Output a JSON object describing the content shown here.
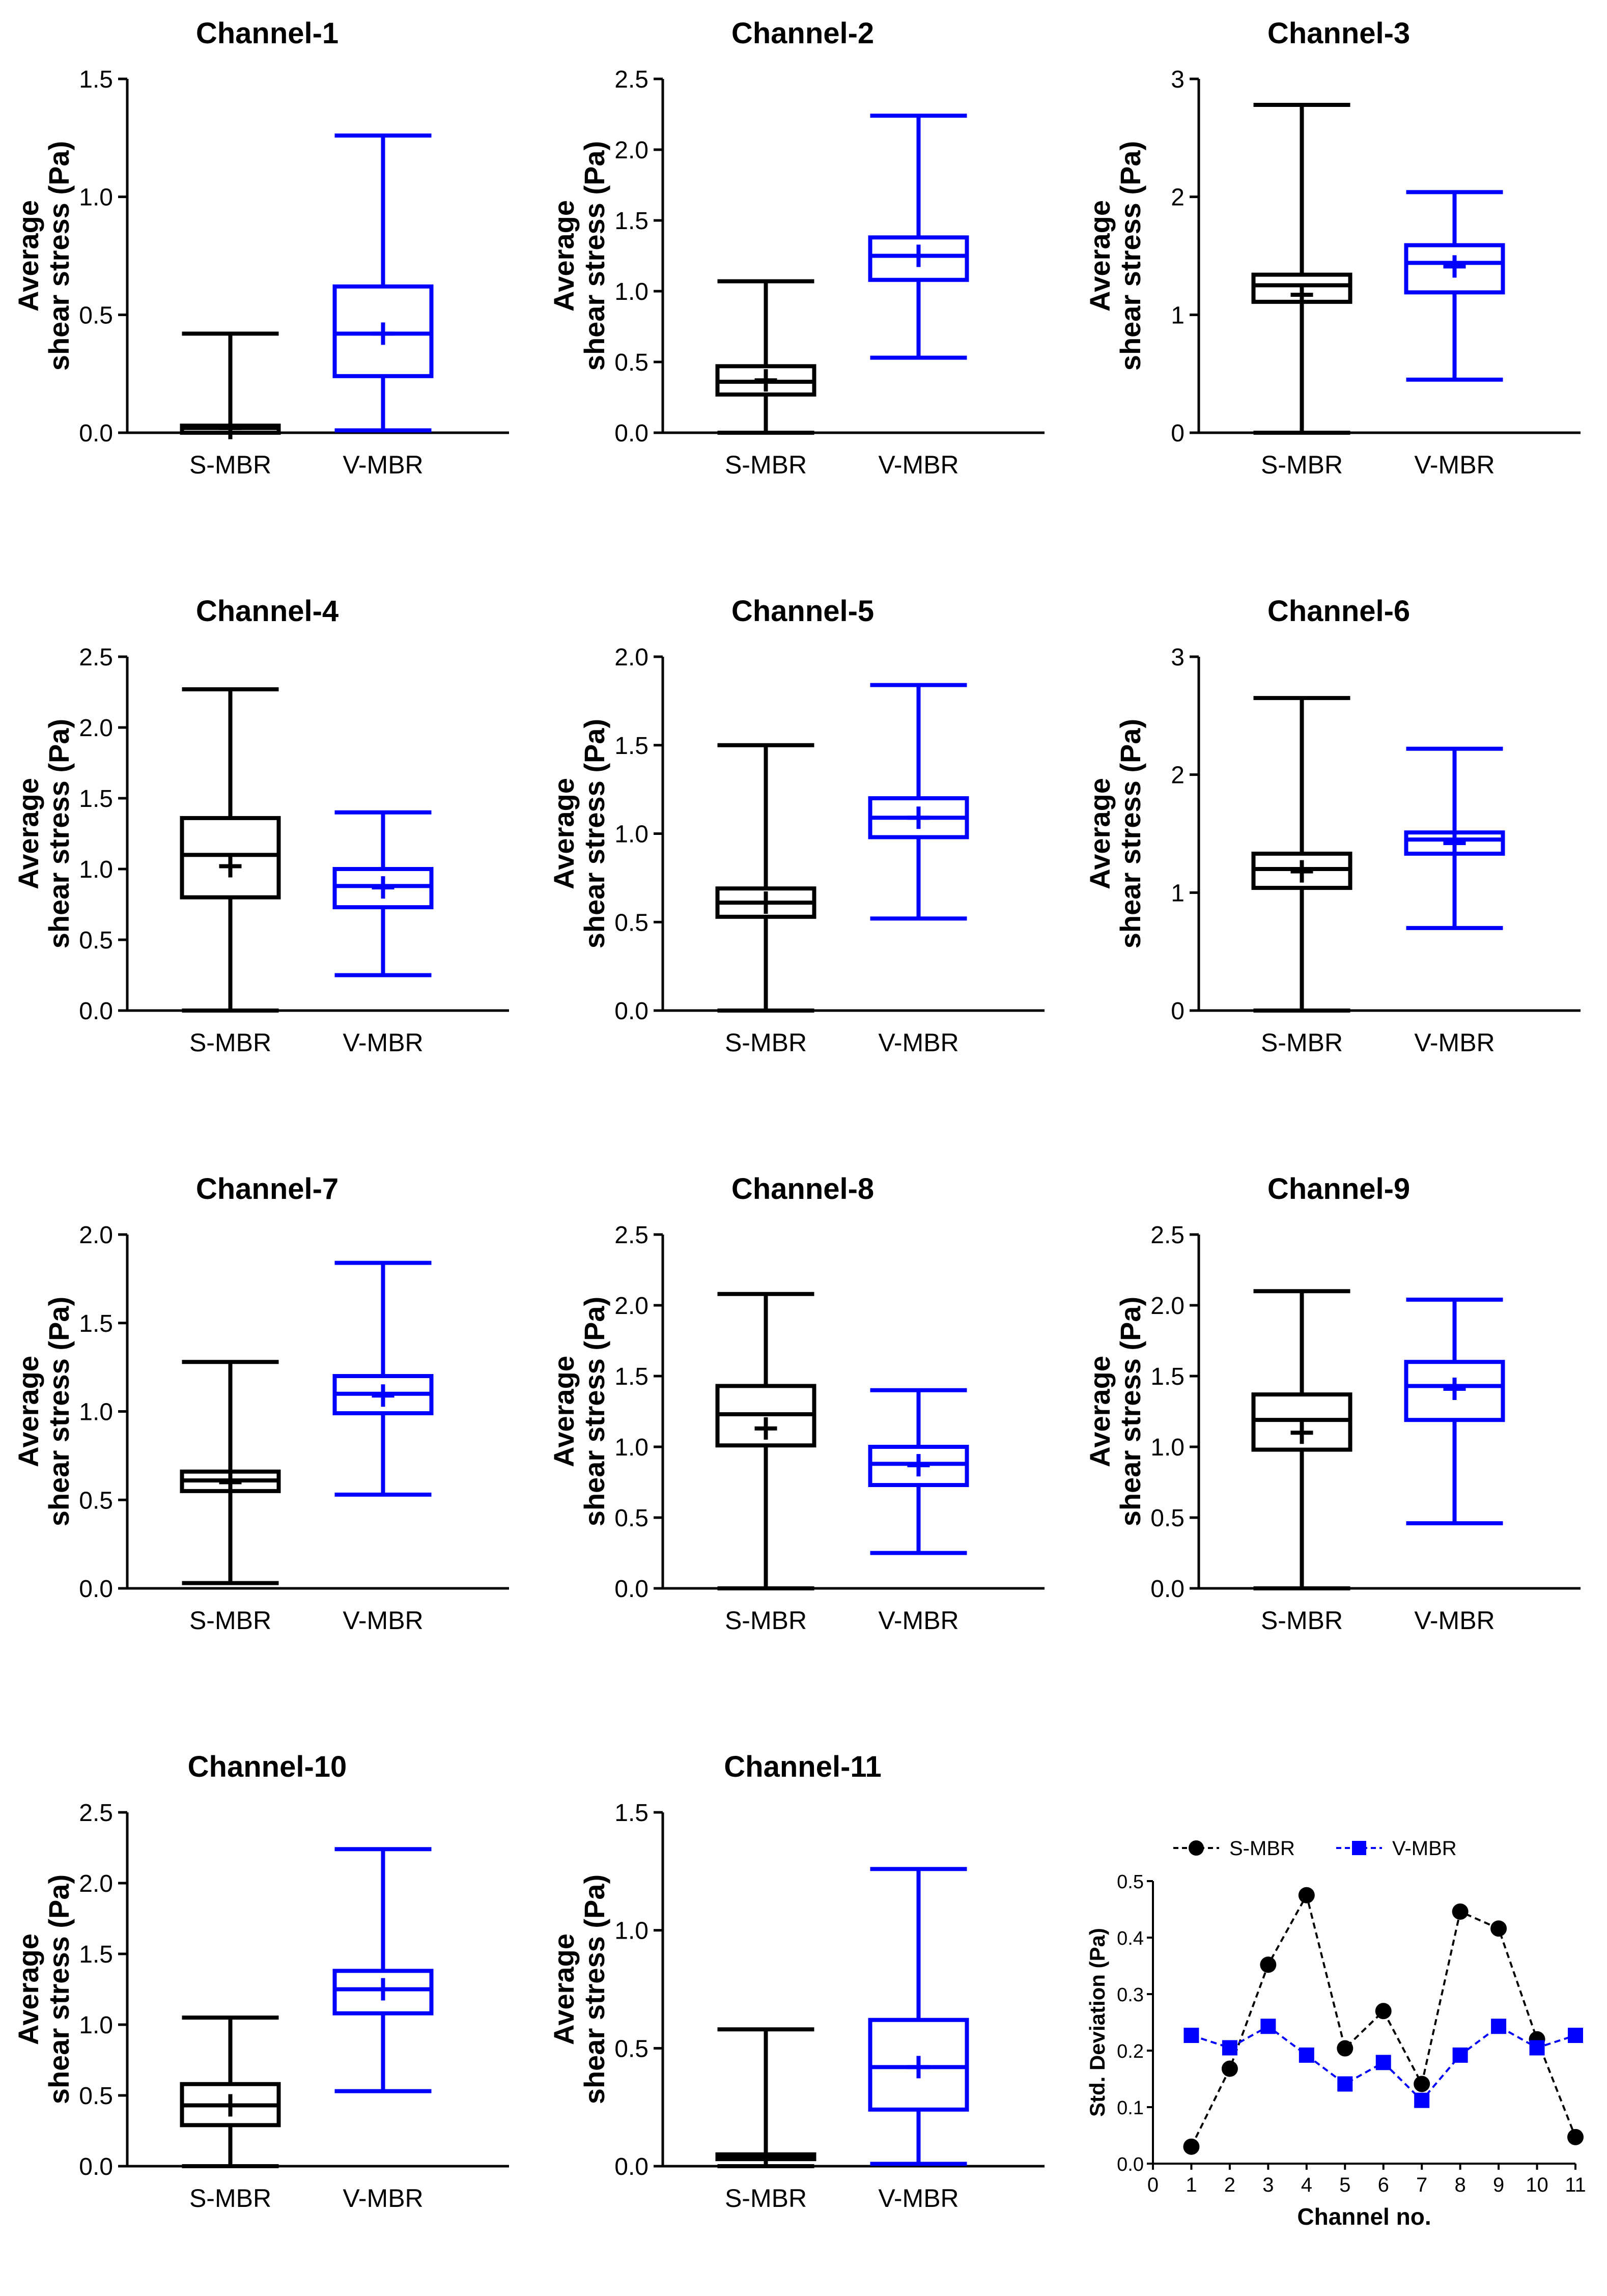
{
  "chart_data": [
    {
      "type": "box",
      "title": "Channel-1",
      "ylabel": [
        "Average",
        "shear stress (Pa)"
      ],
      "ylim": [
        0,
        1.5
      ],
      "yticks": [
        "0.0",
        "0.5",
        "1.0",
        "1.5"
      ],
      "categories": [
        "S-MBR",
        "V-MBR"
      ],
      "boxes": [
        {
          "min": 0,
          "q1": 0.0,
          "median": 0.02,
          "q3": 0.03,
          "max": 0.42,
          "mean": 0.02
        },
        {
          "min": 0.01,
          "q1": 0.24,
          "median": 0.42,
          "q3": 0.62,
          "max": 1.26,
          "mean": 0.42
        }
      ]
    },
    {
      "type": "box",
      "title": "Channel-2",
      "ylabel": [
        "Average",
        "shear stress (Pa)"
      ],
      "ylim": [
        0,
        2.5
      ],
      "yticks": [
        "0.0",
        "0.5",
        "1.0",
        "1.5",
        "2.0",
        "2.5"
      ],
      "categories": [
        "S-MBR",
        "V-MBR"
      ],
      "boxes": [
        {
          "min": 0,
          "q1": 0.27,
          "median": 0.36,
          "q3": 0.47,
          "max": 1.07,
          "mean": 0.37
        },
        {
          "min": 0.53,
          "q1": 1.08,
          "median": 1.25,
          "q3": 1.38,
          "max": 2.24,
          "mean": 1.25
        }
      ]
    },
    {
      "type": "box",
      "title": "Channel-3",
      "ylabel": [
        "Average",
        "shear stress (Pa)"
      ],
      "ylim": [
        0,
        3
      ],
      "yticks": [
        "0",
        "1",
        "2",
        "3"
      ],
      "categories": [
        "S-MBR",
        "V-MBR"
      ],
      "boxes": [
        {
          "min": 0,
          "q1": 1.11,
          "median": 1.25,
          "q3": 1.34,
          "max": 2.78,
          "mean": 1.17
        },
        {
          "min": 0.45,
          "q1": 1.19,
          "median": 1.44,
          "q3": 1.59,
          "max": 2.04,
          "mean": 1.41
        }
      ]
    },
    {
      "type": "box",
      "title": "Channel-4",
      "ylabel": [
        "Average",
        "shear stress (Pa)"
      ],
      "ylim": [
        0,
        2.5
      ],
      "yticks": [
        "0.0",
        "0.5",
        "1.0",
        "1.5",
        "2.0",
        "2.5"
      ],
      "categories": [
        "S-MBR",
        "V-MBR"
      ],
      "boxes": [
        {
          "min": 0,
          "q1": 0.8,
          "median": 1.1,
          "q3": 1.36,
          "max": 2.27,
          "mean": 1.02
        },
        {
          "min": 0.25,
          "q1": 0.73,
          "median": 0.88,
          "q3": 1.0,
          "max": 1.4,
          "mean": 0.87
        }
      ]
    },
    {
      "type": "box",
      "title": "Channel-5",
      "ylabel": [
        "Average",
        "shear stress (Pa)"
      ],
      "ylim": [
        0,
        2.0
      ],
      "yticks": [
        "0.0",
        "0.5",
        "1.0",
        "1.5",
        "2.0"
      ],
      "categories": [
        "S-MBR",
        "V-MBR"
      ],
      "boxes": [
        {
          "min": 0,
          "q1": 0.53,
          "median": 0.61,
          "q3": 0.69,
          "max": 1.5,
          "mean": 0.61
        },
        {
          "min": 0.52,
          "q1": 0.98,
          "median": 1.09,
          "q3": 1.2,
          "max": 1.84,
          "mean": 1.09
        }
      ]
    },
    {
      "type": "box",
      "title": "Channel-6",
      "ylabel": [
        "Average",
        "shear stress (Pa)"
      ],
      "ylim": [
        0,
        3
      ],
      "yticks": [
        "0",
        "1",
        "2",
        "3"
      ],
      "categories": [
        "S-MBR",
        "V-MBR"
      ],
      "boxes": [
        {
          "min": 0,
          "q1": 1.04,
          "median": 1.2,
          "q3": 1.33,
          "max": 2.65,
          "mean": 1.18
        },
        {
          "min": 0.7,
          "q1": 1.33,
          "median": 1.45,
          "q3": 1.51,
          "max": 2.22,
          "mean": 1.42
        }
      ]
    },
    {
      "type": "box",
      "title": "Channel-7",
      "ylabel": [
        "Average",
        "shear stress (Pa)"
      ],
      "ylim": [
        0,
        2.0
      ],
      "yticks": [
        "0.0",
        "0.5",
        "1.0",
        "1.5",
        "2.0"
      ],
      "categories": [
        "S-MBR",
        "V-MBR"
      ],
      "boxes": [
        {
          "min": 0.03,
          "q1": 0.55,
          "median": 0.61,
          "q3": 0.66,
          "max": 1.28,
          "mean": 0.6
        },
        {
          "min": 0.53,
          "q1": 0.99,
          "median": 1.1,
          "q3": 1.2,
          "max": 1.84,
          "mean": 1.09
        }
      ]
    },
    {
      "type": "box",
      "title": "Channel-8",
      "ylabel": [
        "Average",
        "shear stress (Pa)"
      ],
      "ylim": [
        0,
        2.5
      ],
      "yticks": [
        "0.0",
        "0.5",
        "1.0",
        "1.5",
        "2.0",
        "2.5"
      ],
      "categories": [
        "S-MBR",
        "V-MBR"
      ],
      "boxes": [
        {
          "min": 0,
          "q1": 1.01,
          "median": 1.23,
          "q3": 1.43,
          "max": 2.08,
          "mean": 1.13
        },
        {
          "min": 0.25,
          "q1": 0.73,
          "median": 0.88,
          "q3": 1.0,
          "max": 1.4,
          "mean": 0.87
        }
      ]
    },
    {
      "type": "box",
      "title": "Channel-9",
      "ylabel": [
        "Average",
        "shear stress (Pa)"
      ],
      "ylim": [
        0,
        2.5
      ],
      "yticks": [
        "0.0",
        "0.5",
        "1.0",
        "1.5",
        "2.0",
        "2.5"
      ],
      "categories": [
        "S-MBR",
        "V-MBR"
      ],
      "boxes": [
        {
          "min": 0,
          "q1": 0.98,
          "median": 1.19,
          "q3": 1.37,
          "max": 2.1,
          "mean": 1.1
        },
        {
          "min": 0.46,
          "q1": 1.19,
          "median": 1.43,
          "q3": 1.6,
          "max": 2.04,
          "mean": 1.41
        }
      ]
    },
    {
      "type": "box",
      "title": "Channel-10",
      "ylabel": [
        "Average",
        "shear stress (Pa)"
      ],
      "ylim": [
        0,
        2.5
      ],
      "yticks": [
        "0.0",
        "0.5",
        "1.0",
        "1.5",
        "2.0",
        "2.5"
      ],
      "categories": [
        "S-MBR",
        "V-MBR"
      ],
      "boxes": [
        {
          "min": 0,
          "q1": 0.29,
          "median": 0.43,
          "q3": 0.58,
          "max": 1.05,
          "mean": 0.43
        },
        {
          "min": 0.53,
          "q1": 1.08,
          "median": 1.25,
          "q3": 1.38,
          "max": 2.24,
          "mean": 1.25
        }
      ]
    },
    {
      "type": "box",
      "title": "Channel-11",
      "ylabel": [
        "Average",
        "shear stress (Pa)"
      ],
      "ylim": [
        0,
        1.5
      ],
      "yticks": [
        "0.0",
        "0.5",
        "1.0",
        "1.5"
      ],
      "categories": [
        "S-MBR",
        "V-MBR"
      ],
      "boxes": [
        {
          "min": 0,
          "q1": 0.03,
          "median": 0.04,
          "q3": 0.05,
          "max": 0.58,
          "mean": 0.04
        },
        {
          "min": 0.01,
          "q1": 0.24,
          "median": 0.42,
          "q3": 0.62,
          "max": 1.26,
          "mean": 0.42
        }
      ]
    },
    {
      "type": "line",
      "title": "",
      "xlabel": "Channel no.",
      "ylabel": "Std. Deviation (Pa)",
      "xlim": [
        0,
        11
      ],
      "ylim": [
        0,
        0.5
      ],
      "xticks": [
        "0",
        "1",
        "2",
        "3",
        "4",
        "5",
        "6",
        "7",
        "8",
        "9",
        "10",
        "11"
      ],
      "yticks": [
        "0.0",
        "0.1",
        "0.2",
        "0.3",
        "0.4",
        "0.5"
      ],
      "x": [
        1,
        2,
        3,
        4,
        5,
        6,
        7,
        8,
        9,
        10,
        11
      ],
      "legend": "top",
      "series": [
        {
          "name": "S-MBR",
          "color": "#000000",
          "marker": "circle",
          "values": [
            0.03,
            0.168,
            0.352,
            0.475,
            0.204,
            0.27,
            0.141,
            0.446,
            0.416,
            0.22,
            0.047
          ]
        },
        {
          "name": "V-MBR",
          "color": "#0000ff",
          "marker": "square",
          "values": [
            0.227,
            0.205,
            0.243,
            0.192,
            0.141,
            0.179,
            0.112,
            0.192,
            0.243,
            0.205,
            0.227
          ]
        }
      ]
    }
  ],
  "colors": {
    "s": "#000000",
    "v": "#0000ff"
  }
}
